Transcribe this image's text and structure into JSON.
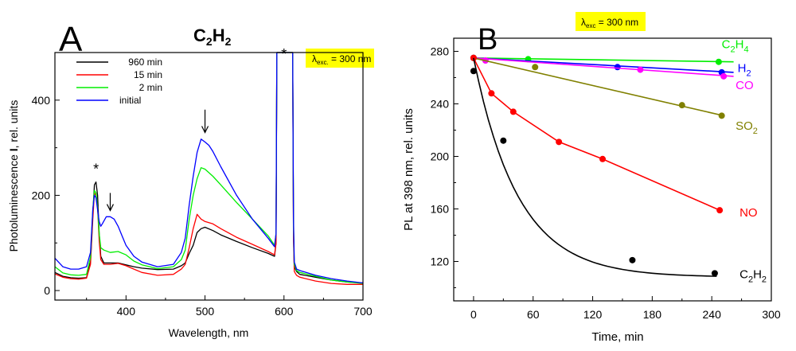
{
  "chart_data": [
    {
      "panel": "A",
      "type": "line",
      "title": "C2H2",
      "title_main": "C",
      "title_sub1": "2",
      "title_mid": "H",
      "title_sub2": "2",
      "badge": {
        "lambda": "λ",
        "sub": "exc.",
        "text": " = 300 nm",
        "color": "#ffff00"
      },
      "xlabel": "Wavelength, nm",
      "ylabel_pre": "Photoluminescence ",
      "ylabel_bold": "I",
      "ylabel_post": ", rel. units",
      "xlim": [
        310,
        700
      ],
      "ylim": [
        -20,
        500
      ],
      "xticks": [
        400,
        500,
        600,
        700
      ],
      "yticks": [
        0,
        200,
        400
      ],
      "asterisks": [
        {
          "x": 362,
          "y": 242,
          "label": "*"
        },
        {
          "x": 600,
          "y": 500,
          "label": "*"
        }
      ],
      "arrows": [
        {
          "x": 380,
          "y_from": 205,
          "y_to": 168
        },
        {
          "x": 500,
          "y_from": 380,
          "y_to": 332
        }
      ],
      "series": [
        {
          "name": "960 min",
          "color": "#000000",
          "x": [
            310,
            320,
            330,
            340,
            350,
            355,
            358,
            360,
            362,
            364,
            366,
            368,
            372,
            380,
            390,
            400,
            410,
            420,
            440,
            460,
            470,
            475,
            480,
            485,
            490,
            495,
            500,
            510,
            520,
            540,
            560,
            580,
            588,
            590,
            591,
            593,
            595,
            600,
            610,
            611,
            612,
            613,
            616,
            620,
            640,
            660,
            680,
            700
          ],
          "y": [
            38,
            30,
            27,
            26,
            27,
            60,
            160,
            222,
            228,
            200,
            120,
            72,
            58,
            58,
            58,
            54,
            50,
            47,
            44,
            45,
            52,
            58,
            78,
            95,
            122,
            130,
            133,
            126,
            117,
            103,
            90,
            78,
            72,
            100,
            500,
            500,
            500,
            500,
            500,
            500,
            120,
            50,
            40,
            34,
            28,
            22,
            18,
            16
          ]
        },
        {
          "name": "15 min",
          "color": "#ff0000",
          "x": [
            310,
            320,
            330,
            340,
            350,
            355,
            358,
            360,
            362,
            364,
            366,
            368,
            372,
            380,
            390,
            400,
            410,
            420,
            440,
            460,
            470,
            475,
            480,
            485,
            490,
            495,
            500,
            510,
            520,
            540,
            560,
            580,
            588,
            590,
            591,
            593,
            595,
            600,
            610,
            611,
            612,
            613,
            616,
            620,
            640,
            660,
            680,
            700
          ],
          "y": [
            35,
            28,
            25,
            24,
            26,
            55,
            150,
            205,
            200,
            175,
            105,
            65,
            55,
            55,
            57,
            52,
            45,
            38,
            32,
            34,
            45,
            55,
            90,
            130,
            160,
            150,
            145,
            140,
            130,
            112,
            97,
            82,
            75,
            100,
            500,
            500,
            500,
            500,
            500,
            500,
            110,
            40,
            32,
            28,
            20,
            15,
            13,
            13
          ]
        },
        {
          "name": "2 min",
          "color": "#00ee00",
          "x": [
            310,
            320,
            330,
            340,
            350,
            355,
            358,
            360,
            362,
            364,
            366,
            368,
            372,
            380,
            390,
            400,
            410,
            420,
            440,
            460,
            470,
            475,
            480,
            485,
            490,
            495,
            500,
            510,
            520,
            540,
            560,
            580,
            588,
            590,
            591,
            593,
            595,
            600,
            610,
            611,
            612,
            613,
            616,
            620,
            640,
            660,
            680,
            700
          ],
          "y": [
            50,
            37,
            33,
            32,
            34,
            70,
            170,
            210,
            205,
            175,
            120,
            90,
            85,
            80,
            82,
            75,
            62,
            54,
            46,
            50,
            65,
            85,
            150,
            200,
            235,
            258,
            255,
            240,
            222,
            185,
            150,
            115,
            95,
            120,
            500,
            500,
            500,
            500,
            500,
            500,
            140,
            55,
            42,
            38,
            30,
            22,
            18,
            15
          ]
        },
        {
          "name": "initial",
          "color": "#0000ff",
          "x": [
            310,
            320,
            330,
            340,
            350,
            355,
            358,
            360,
            362,
            364,
            366,
            368,
            370,
            375,
            380,
            385,
            390,
            395,
            400,
            410,
            420,
            440,
            460,
            470,
            475,
            480,
            485,
            490,
            495,
            500,
            505,
            510,
            520,
            540,
            560,
            580,
            588,
            590,
            591,
            593,
            595,
            600,
            610,
            611,
            612,
            613,
            616,
            620,
            640,
            660,
            680,
            700
          ],
          "y": [
            68,
            50,
            45,
            45,
            50,
            80,
            170,
            200,
            195,
            170,
            145,
            135,
            140,
            155,
            155,
            150,
            135,
            115,
            95,
            72,
            60,
            50,
            55,
            80,
            110,
            180,
            240,
            290,
            318,
            312,
            305,
            292,
            260,
            200,
            150,
            110,
            92,
            120,
            500,
            500,
            500,
            500,
            500,
            500,
            150,
            60,
            45,
            42,
            32,
            25,
            20,
            16
          ]
        }
      ]
    },
    {
      "panel": "B",
      "type": "scatter",
      "badge": {
        "lambda": "λ",
        "sub": "exc",
        "text": " = 300 nm",
        "color": "#ffff00"
      },
      "xlabel": "Time, min",
      "ylabel": "PL at 398 nm, rel. units",
      "xlim": [
        -20,
        300
      ],
      "ylim": [
        90,
        290
      ],
      "xticks": [
        0,
        60,
        120,
        180,
        240,
        300
      ],
      "yticks": [
        120,
        160,
        200,
        240,
        280
      ],
      "series": [
        {
          "name": "C2H4",
          "label_main": "C",
          "label_sub1": "2",
          "label_mid": "H",
          "label_sub2": "4",
          "color": "#00ee00",
          "points": [
            [
              0,
              275
            ],
            [
              55,
              274
            ],
            [
              247,
              272
            ]
          ],
          "fit": [
            [
              0,
              275
            ],
            [
              262,
              272
            ]
          ],
          "label_at": [
            250,
            286
          ]
        },
        {
          "name": "H2",
          "label_main": "H",
          "label_sub1": "2",
          "label_mid": "",
          "label_sub2": "",
          "color": "#0000ff",
          "points": [
            [
              0,
              275
            ],
            [
              145,
              268
            ],
            [
              250,
              264
            ]
          ],
          "fit": [
            [
              0,
              275
            ],
            [
              262,
              264
            ]
          ],
          "label_at": [
            266,
            268
          ]
        },
        {
          "name": "CO",
          "label_main": "CO",
          "label_sub1": "",
          "label_mid": "",
          "label_sub2": "",
          "color": "#ff00ff",
          "points": [
            [
              0,
              275
            ],
            [
              12,
              273
            ],
            [
              168,
              266
            ],
            [
              252,
              261
            ]
          ],
          "fit": [
            [
              0,
              275
            ],
            [
              262,
              261
            ]
          ],
          "label_at": [
            264,
            255
          ]
        },
        {
          "name": "SO2",
          "label_main": "SO",
          "label_sub1": "2",
          "label_mid": "",
          "label_sub2": "",
          "color": "#808000",
          "points": [
            [
              0,
              275
            ],
            [
              62,
              268
            ],
            [
              210,
              239
            ],
            [
              250,
              231
            ]
          ],
          "fit": [
            [
              0,
              275
            ],
            [
              252,
              231
            ]
          ],
          "label_at": [
            264,
            224
          ]
        },
        {
          "name": "NO",
          "label_main": "NO",
          "label_sub1": "",
          "label_mid": "",
          "label_sub2": "",
          "color": "#ff0000",
          "points": [
            [
              0,
              275
            ],
            [
              18,
              248
            ],
            [
              40,
              234
            ],
            [
              86,
              211
            ],
            [
              130,
              198
            ],
            [
              248,
              159
            ]
          ],
          "fit": [
            [
              0,
              275
            ],
            [
              18,
              248
            ],
            [
              40,
              234
            ],
            [
              86,
              211
            ],
            [
              130,
              198
            ],
            [
              248,
              159
            ]
          ],
          "label_at": [
            268,
            158
          ]
        },
        {
          "name": "C2H2",
          "label_main": "C",
          "label_sub1": "2",
          "label_mid": "H",
          "label_sub2": "2",
          "color": "#000000",
          "points": [
            [
              0,
              265
            ],
            [
              30,
              212
            ],
            [
              160,
              121
            ],
            [
              243,
              111
            ]
          ],
          "fit": "exp",
          "fit_params": {
            "a": 108,
            "b": 167,
            "tau": 45
          },
          "label_at": [
            268,
            111
          ]
        }
      ]
    }
  ]
}
